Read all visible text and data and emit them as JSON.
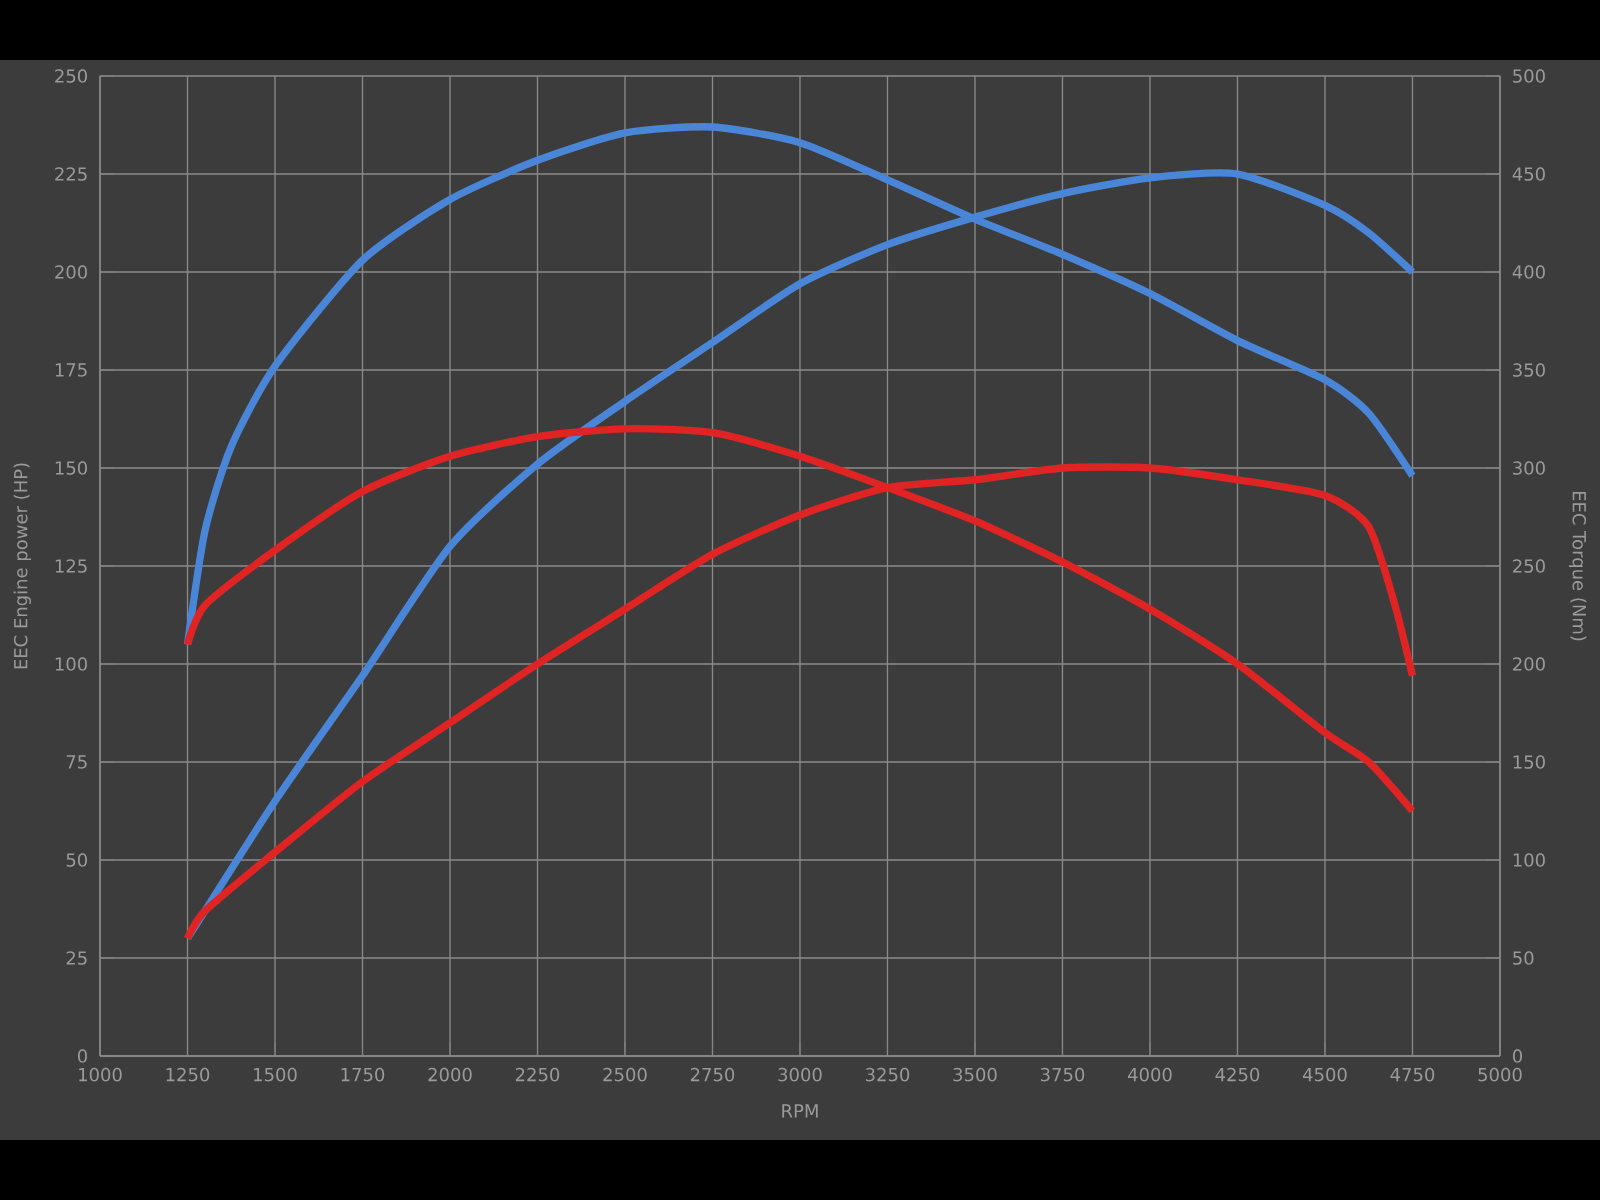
{
  "chart_data": {
    "type": "line",
    "xlabel": "RPM",
    "ylabel": "EEC Engine power (HP)",
    "y2label": "EEC Torque (Nm)",
    "xlim": [
      1000,
      5000
    ],
    "xticks": [
      1000,
      1250,
      1500,
      1750,
      2000,
      2250,
      2500,
      2750,
      3000,
      3250,
      3500,
      3750,
      4000,
      4250,
      4500,
      4750,
      5000
    ],
    "ylim": [
      0,
      250
    ],
    "yticks": [
      0,
      25,
      50,
      75,
      100,
      125,
      150,
      175,
      200,
      225,
      250
    ],
    "y2lim": [
      0,
      500
    ],
    "y2ticks": [
      0,
      50,
      100,
      150,
      200,
      250,
      300,
      350,
      400,
      450,
      500
    ],
    "grid": true,
    "marker": "none",
    "series": [
      {
        "color": "#4a86d8",
        "axis": "y",
        "x": [
          1250,
          1500,
          1750,
          2000,
          2250,
          2500,
          2750,
          3000,
          3250,
          3500,
          3750,
          4000,
          4250,
          4500,
          4625,
          4750
        ],
        "values": [
          30,
          65,
          97,
          130,
          151,
          167,
          182,
          197,
          207,
          214,
          220,
          224,
          225,
          217,
          210,
          200
        ]
      },
      {
        "color": "#4a86d8",
        "axis": "y2",
        "x": [
          1250,
          1300,
          1375,
          1500,
          1750,
          2000,
          2250,
          2500,
          2750,
          3000,
          3250,
          3500,
          3750,
          4000,
          4250,
          4500,
          4625,
          4750
        ],
        "values": [
          210,
          268,
          311,
          352,
          406,
          437,
          457,
          471,
          474,
          466,
          447,
          427,
          409,
          389,
          365,
          345,
          328,
          296
        ]
      },
      {
        "color": "#e02424",
        "axis": "y",
        "x": [
          1250,
          1300,
          1500,
          1750,
          2000,
          2250,
          2500,
          2750,
          3000,
          3250,
          3500,
          3750,
          4000,
          4250,
          4500,
          4625,
          4700,
          4750
        ],
        "values": [
          30,
          37,
          52,
          70,
          85,
          100,
          114,
          128,
          138,
          145,
          147,
          150,
          150,
          147,
          143,
          135,
          115,
          97
        ]
      },
      {
        "color": "#e02424",
        "axis": "y2",
        "x": [
          1250,
          1300,
          1500,
          1750,
          2000,
          2250,
          2500,
          2750,
          3000,
          3250,
          3500,
          3750,
          4000,
          4250,
          4500,
          4625,
          4750
        ],
        "values": [
          210,
          230,
          258,
          288,
          306,
          316,
          320,
          318,
          306,
          290,
          273,
          252,
          228,
          200,
          165,
          150,
          125
        ]
      }
    ]
  }
}
